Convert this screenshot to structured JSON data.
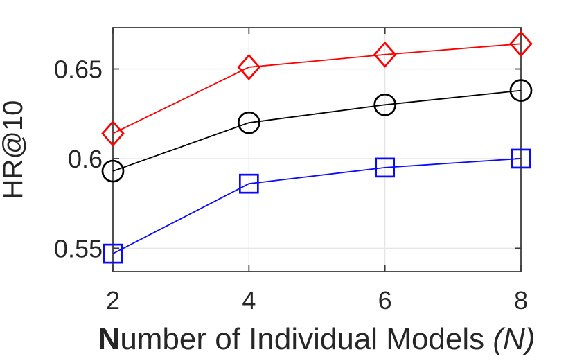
{
  "chart_data": {
    "type": "line",
    "x": [
      2,
      4,
      6,
      8
    ],
    "series": [
      {
        "name": "red-diamond-series",
        "color": "#ff0000",
        "marker": "diamond",
        "values": [
          0.614,
          0.651,
          0.658,
          0.664
        ]
      },
      {
        "name": "black-circle-series",
        "color": "#000000",
        "marker": "circle",
        "values": [
          0.593,
          0.62,
          0.63,
          0.638
        ]
      },
      {
        "name": "blue-square-series",
        "color": "#0a0aff",
        "marker": "square",
        "values": [
          0.547,
          0.586,
          0.595,
          0.6
        ]
      }
    ],
    "title": "",
    "ylabel": "HR@10",
    "xlabel_parts": {
      "bold": "N",
      "regular": "umber of Individual Models ",
      "italic": "(N)"
    },
    "xlim": [
      2,
      8
    ],
    "ylim": [
      0.537,
      0.673
    ],
    "xticks": [
      2,
      4,
      6,
      8
    ],
    "xtick_labels": [
      "2",
      "4",
      "6",
      "8"
    ],
    "yticks": [
      0.55,
      0.6,
      0.65
    ],
    "ytick_labels": [
      "0.55",
      "0.6",
      "0.65"
    ],
    "grid": true,
    "legend": "none",
    "colors": {
      "axis": "#3c3c3c",
      "grid": "#e6e6e6",
      "text": "#262626",
      "background": "#ffffff"
    }
  }
}
